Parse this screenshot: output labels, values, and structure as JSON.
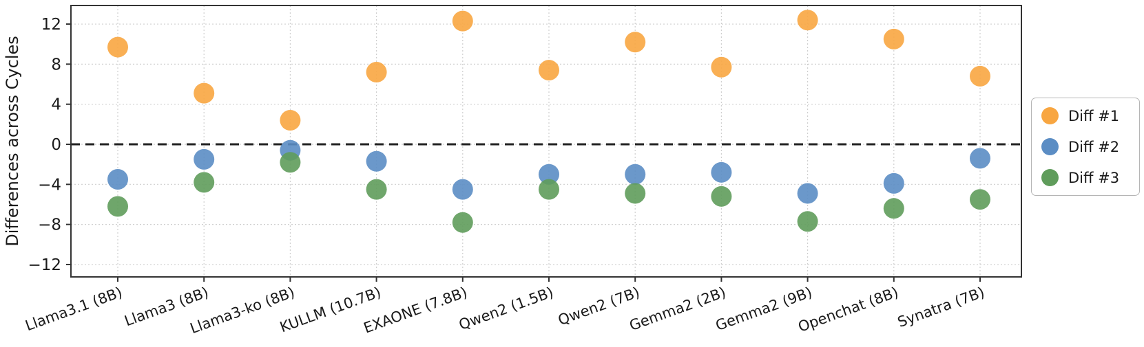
{
  "chart_data": {
    "type": "scatter",
    "title": "",
    "xlabel": "",
    "ylabel": "Differences across Cycles",
    "categories": [
      "Llama3.1 (8B)",
      "Llama3 (8B)",
      "Llama3-ko (8B)",
      "KULLM (10.7B)",
      "EXAONE (7.8B)",
      "Qwen2 (1.5B)",
      "Qwen2 (7B)",
      "Gemma2 (2B)",
      "Gemma2 (9B)",
      "Openchat (8B)",
      "Synatra (7B)"
    ],
    "series": [
      {
        "name": "Diff #1",
        "color": "#F8A641",
        "values": [
          9.7,
          5.1,
          2.4,
          7.2,
          12.3,
          7.4,
          10.2,
          7.7,
          12.4,
          10.5,
          6.8
        ]
      },
      {
        "name": "Diff #2",
        "color": "#5B8DC4",
        "values": [
          -3.5,
          -1.5,
          -0.6,
          -1.7,
          -4.5,
          -3.0,
          -3.0,
          -2.8,
          -4.9,
          -3.9,
          -1.4
        ]
      },
      {
        "name": "Diff #3",
        "color": "#5F9C5B",
        "values": [
          -6.2,
          -3.8,
          -1.8,
          -4.5,
          -7.8,
          -4.5,
          -4.9,
          -5.2,
          -7.7,
          -6.4,
          -5.5
        ]
      }
    ],
    "yticks": [
      -12,
      -8,
      -4,
      0,
      4,
      8,
      12
    ],
    "ylim": [
      -13.5,
      13.9
    ],
    "zero_line": true,
    "grid": true,
    "legend_position": "right-outside",
    "legend_entries": [
      "Diff #1",
      "Diff #2",
      "Diff #3"
    ]
  }
}
